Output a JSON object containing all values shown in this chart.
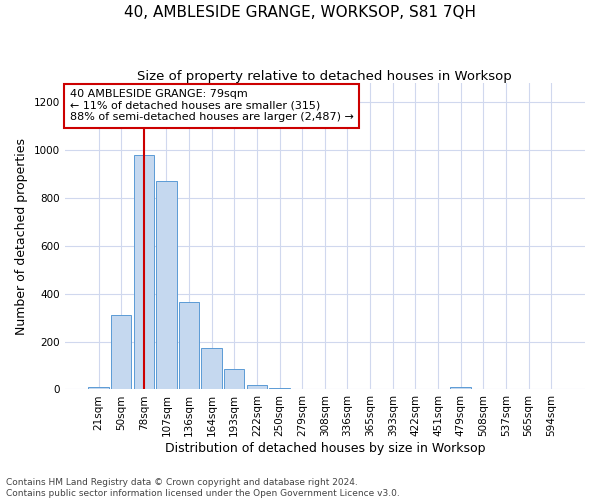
{
  "title": "40, AMBLESIDE GRANGE, WORKSOP, S81 7QH",
  "subtitle": "Size of property relative to detached houses in Worksop",
  "xlabel": "Distribution of detached houses by size in Worksop",
  "ylabel": "Number of detached properties",
  "categories": [
    "21sqm",
    "50sqm",
    "78sqm",
    "107sqm",
    "136sqm",
    "164sqm",
    "193sqm",
    "222sqm",
    "250sqm",
    "279sqm",
    "308sqm",
    "336sqm",
    "365sqm",
    "393sqm",
    "422sqm",
    "451sqm",
    "479sqm",
    "508sqm",
    "537sqm",
    "565sqm",
    "594sqm"
  ],
  "values": [
    10,
    310,
    980,
    870,
    365,
    175,
    85,
    20,
    5,
    2,
    1,
    1,
    1,
    0,
    0,
    0,
    10,
    1,
    0,
    0,
    0
  ],
  "bar_color": "#c5d8ef",
  "bar_edge_color": "#5b9bd5",
  "grid_color": "#d0d8ee",
  "vline_x_index": 2,
  "vline_color": "#cc0000",
  "annotation_text": "40 AMBLESIDE GRANGE: 79sqm\n← 11% of detached houses are smaller (315)\n88% of semi-detached houses are larger (2,487) →",
  "annotation_box_color": "#ffffff",
  "annotation_box_edge": "#cc0000",
  "ylim": [
    0,
    1280
  ],
  "yticks": [
    0,
    200,
    400,
    600,
    800,
    1000,
    1200
  ],
  "footnote": "Contains HM Land Registry data © Crown copyright and database right 2024.\nContains public sector information licensed under the Open Government Licence v3.0.",
  "bg_color": "#ffffff",
  "title_fontsize": 11,
  "subtitle_fontsize": 9.5,
  "axis_label_fontsize": 9,
  "tick_fontsize": 7.5,
  "annotation_fontsize": 8,
  "footnote_fontsize": 6.5
}
